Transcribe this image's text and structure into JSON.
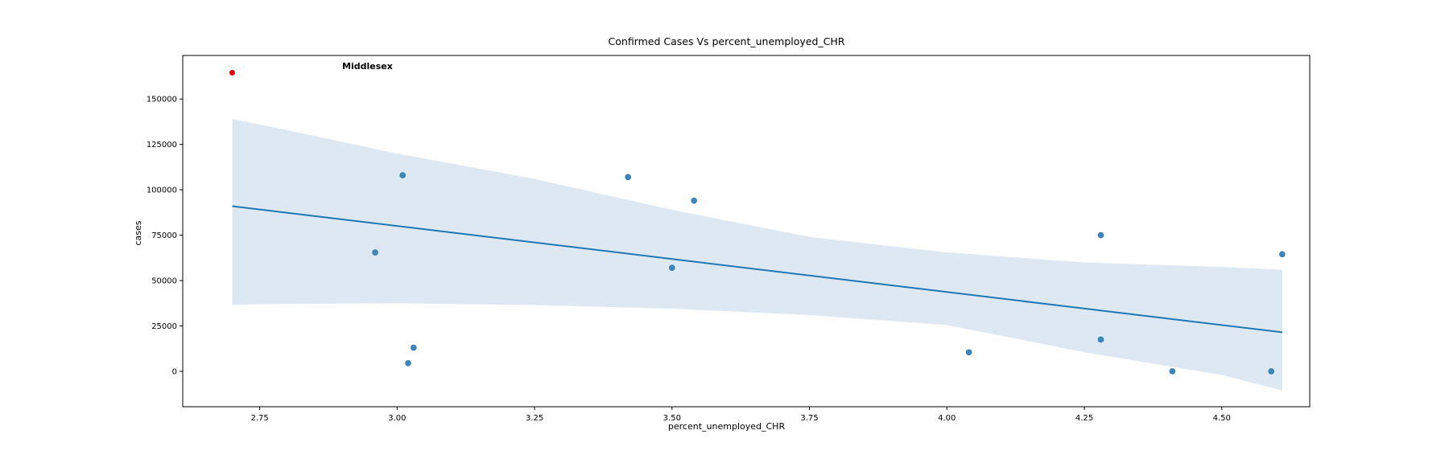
{
  "chart_data": {
    "type": "scatter",
    "title": "Confirmed Cases Vs percent_unemployed_CHR",
    "xlabel": "percent_unemployed_CHR",
    "ylabel": "cases",
    "xlim": [
      2.61,
      4.66
    ],
    "ylim": [
      -19500,
      174000
    ],
    "xticks": [
      2.75,
      3.0,
      3.25,
      3.5,
      3.75,
      4.0,
      4.25,
      4.5
    ],
    "xtick_labels": [
      "2.75",
      "3.00",
      "3.25",
      "3.50",
      "3.75",
      "4.00",
      "4.25",
      "4.50"
    ],
    "yticks": [
      0,
      25000,
      50000,
      75000,
      100000,
      125000,
      150000
    ],
    "ytick_labels": [
      "0",
      "25000",
      "50000",
      "75000",
      "100000",
      "125000",
      "150000"
    ],
    "grid": false,
    "points": [
      {
        "x": 2.96,
        "y": 65500
      },
      {
        "x": 3.01,
        "y": 108000
      },
      {
        "x": 3.02,
        "y": 4500
      },
      {
        "x": 3.03,
        "y": 13000
      },
      {
        "x": 3.42,
        "y": 107000
      },
      {
        "x": 3.5,
        "y": 57000
      },
      {
        "x": 3.54,
        "y": 94000
      },
      {
        "x": 4.04,
        "y": 10500
      },
      {
        "x": 4.28,
        "y": 75000
      },
      {
        "x": 4.28,
        "y": 17500
      },
      {
        "x": 4.41,
        "y": 0
      },
      {
        "x": 4.59,
        "y": 0
      },
      {
        "x": 4.61,
        "y": 64500
      }
    ],
    "highlight": {
      "x": 2.7,
      "y": 164500,
      "label": "Middlesex",
      "label_x": 2.9,
      "label_y": 166500
    },
    "regression": {
      "x": [
        2.7,
        4.61
      ],
      "y": [
        91000,
        21500
      ]
    },
    "confidence_band": {
      "x": [
        2.7,
        2.75,
        3.0,
        3.25,
        3.5,
        3.75,
        4.0,
        4.25,
        4.5,
        4.61
      ],
      "upper": [
        139000,
        136000,
        120000,
        106000,
        89000,
        74000,
        65500,
        60000,
        57500,
        56000
      ],
      "lower": [
        36500,
        37000,
        37500,
        36500,
        34500,
        31000,
        25500,
        10500,
        -2000,
        -10500
      ]
    },
    "colors": {
      "points": "#3c87bc",
      "points_edge": "#2f6f9e",
      "highlight": "#e00000",
      "regression": "#1f77b4",
      "band": "#dde8f3"
    }
  }
}
